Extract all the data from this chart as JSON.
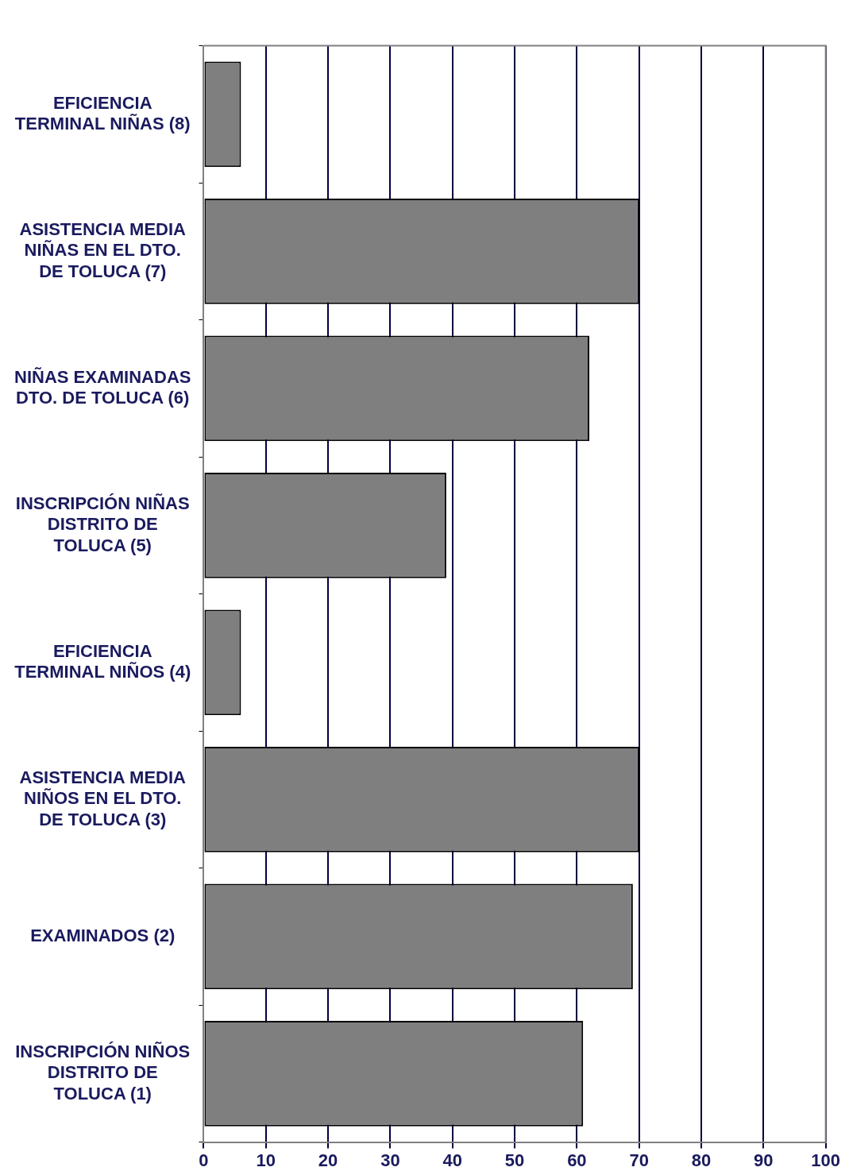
{
  "chart_data": {
    "type": "bar",
    "orientation": "horizontal",
    "categories": [
      "EFICIENCIA\nTERMINAL NIÑAS (8)",
      "ASISTENCIA MEDIA\nNIÑAS EN EL DTO.\nDE TOLUCA (7)",
      "NIÑAS EXAMINADAS\nDTO. DE TOLUCA (6)",
      "INSCRIPCIÓN NIÑAS\nDISTRITO DE\nTOLUCA (5)",
      "EFICIENCIA\nTERMINAL NIÑOS (4)",
      "ASISTENCIA MEDIA\nNIÑOS EN EL DTO.\nDE TOLUCA (3)",
      "EXAMINADOS (2)",
      "INSCRIPCIÓN NIÑOS\nDISTRITO DE\nTOLUCA (1)"
    ],
    "values": [
      6,
      70,
      62,
      39,
      6,
      70,
      69,
      61
    ],
    "color": "#7f7f7f",
    "xlim": [
      0,
      100
    ],
    "xticks": [
      0,
      10,
      20,
      30,
      40,
      50,
      60,
      70,
      80,
      90,
      100
    ],
    "grid": "x"
  }
}
